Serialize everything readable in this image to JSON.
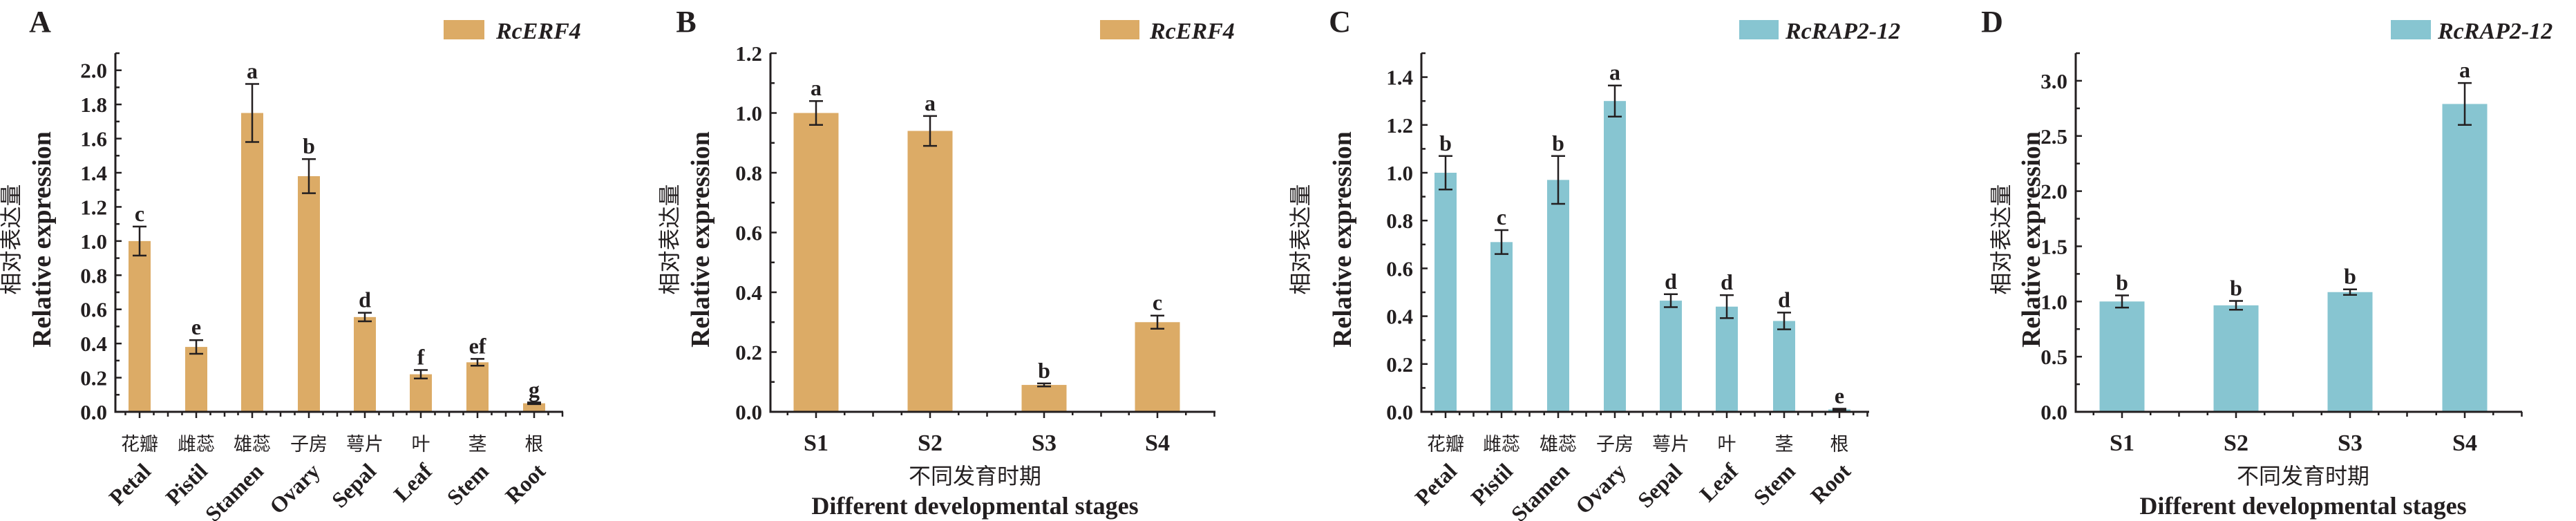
{
  "chart_data": [
    {
      "panel": "A",
      "type": "bar",
      "title": "",
      "legend": "RcERF4",
      "legend_position": "top-right",
      "color": "#dcab66",
      "ylabel_cn": "相对表达量",
      "ylabel": "Relative expression",
      "xlabel_cn": "",
      "xlabel": "",
      "categories_cn": [
        "花瓣",
        "雌蕊",
        "雄蕊",
        "子房",
        "萼片",
        "叶",
        "茎",
        "根"
      ],
      "categories": [
        "Petal",
        "Pistil",
        "Stamen",
        "Ovary",
        "Sepal",
        "Leaf",
        "Stem",
        "Root"
      ],
      "values": [
        1.0,
        0.38,
        1.75,
        1.38,
        0.555,
        0.22,
        0.29,
        0.05
      ],
      "errors": [
        0.085,
        0.04,
        0.17,
        0.1,
        0.025,
        0.025,
        0.02,
        0.005
      ],
      "letters": [
        "c",
        "e",
        "a",
        "b",
        "d",
        "f",
        "ef",
        "g"
      ],
      "ylim": [
        0,
        2.1
      ],
      "yticks": [
        "0.0",
        "0.2",
        "0.4",
        "0.6",
        "0.8",
        "1.0",
        "1.2",
        "1.4",
        "1.6",
        "1.8",
        "2.0"
      ],
      "ytick_step": 0.2,
      "yminor_step": 0.1
    },
    {
      "panel": "B",
      "type": "bar",
      "title": "",
      "legend": "RcERF4",
      "legend_position": "top-right",
      "color": "#dcab66",
      "ylabel_cn": "相对表达量",
      "ylabel": "Relative expression",
      "xlabel_cn": "不同发育时期",
      "xlabel": "Different developmental stages",
      "categories_cn": [],
      "categories": [
        "S1",
        "S2",
        "S3",
        "S4"
      ],
      "values": [
        1.0,
        0.94,
        0.09,
        0.3
      ],
      "errors": [
        0.04,
        0.05,
        0.005,
        0.022
      ],
      "letters": [
        "a",
        "a",
        "b",
        "c"
      ],
      "ylim": [
        0,
        1.2
      ],
      "yticks": [
        "0.0",
        "0.2",
        "0.4",
        "0.6",
        "0.8",
        "1.0",
        "1.2"
      ],
      "ytick_step": 0.2,
      "yminor_step": 0.1
    },
    {
      "panel": "C",
      "type": "bar",
      "title": "",
      "legend": "RcRAP2-12",
      "legend_position": "top-right",
      "color": "#87c5d1",
      "ylabel_cn": "相对表达量",
      "ylabel": "Relative expression",
      "xlabel_cn": "",
      "xlabel": "",
      "categories_cn": [
        "花瓣",
        "雌蕊",
        "雄蕊",
        "子房",
        "萼片",
        "叶",
        "茎",
        "根"
      ],
      "categories": [
        "Petal",
        "Pistil",
        "Stamen",
        "Ovary",
        "Sepal",
        "Leaf",
        "Stem",
        "Root"
      ],
      "values": [
        1.0,
        0.71,
        0.97,
        1.3,
        0.465,
        0.44,
        0.38,
        0.01
      ],
      "errors": [
        0.07,
        0.05,
        0.1,
        0.065,
        0.027,
        0.048,
        0.035,
        0.003
      ],
      "letters": [
        "b",
        "c",
        "b",
        "a",
        "d",
        "d",
        "d",
        "e"
      ],
      "ylim": [
        0,
        1.5
      ],
      "yticks": [
        "0.0",
        "0.2",
        "0.4",
        "0.6",
        "0.8",
        "1.0",
        "1.2",
        "1.4"
      ],
      "ytick_step": 0.2,
      "yminor_step": 0.1
    },
    {
      "panel": "D",
      "type": "bar",
      "title": "",
      "legend": "RcRAP2-12",
      "legend_position": "top-right",
      "color": "#87c5d1",
      "ylabel_cn": "相对表达量",
      "ylabel": "Relative expression",
      "xlabel_cn": "不同发育时期",
      "xlabel": "Different developmental stages",
      "categories_cn": [],
      "categories": [
        "S1",
        "S2",
        "S3",
        "S4"
      ],
      "values": [
        1.0,
        0.965,
        1.085,
        2.79
      ],
      "errors": [
        0.055,
        0.04,
        0.025,
        0.19
      ],
      "letters": [
        "b",
        "b",
        "b",
        "a"
      ],
      "ylim": [
        0,
        3.25
      ],
      "yticks": [
        "0.0",
        "0.5",
        "1.0",
        "1.5",
        "2.0",
        "2.5",
        "3.0"
      ],
      "ytick_step": 0.5,
      "yminor_step": 0.25
    }
  ]
}
